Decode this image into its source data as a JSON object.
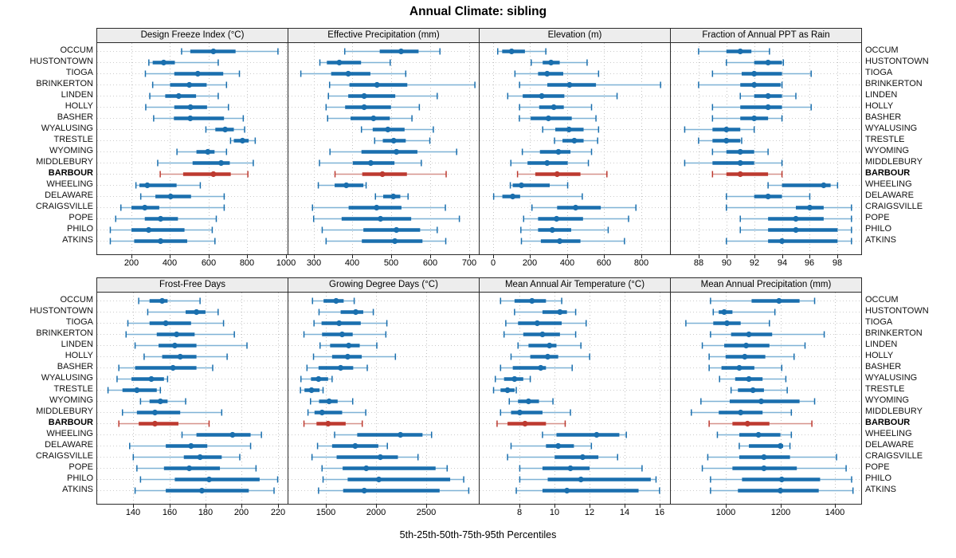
{
  "title": "Annual Climate: sibling",
  "caption": "5th-25th-50th-75th-95th Percentiles",
  "percentile_labels": [
    "5th",
    "25th",
    "50th",
    "75th",
    "95th"
  ],
  "stations": [
    "OCCUM",
    "HUSTONTOWN",
    "TIOGA",
    "BRINKERTON",
    "LINDEN",
    "HOLLY",
    "BASHER",
    "WYALUSING",
    "TRESTLE",
    "WYOMING",
    "MIDDLEBURY",
    "BARBOUR",
    "WHEELING",
    "DELAWARE",
    "CRAIGSVILLE",
    "POPE",
    "PHILO",
    "ATKINS"
  ],
  "highlight_station": "BARBOUR",
  "colors": {
    "blue": "#1a6fae",
    "blue_light": "#7fb2d6",
    "red": "#bd3a30",
    "red_light": "#d6928b",
    "grid": "#c3c3c3",
    "row_guide": "#cccccc",
    "strip_bg": "#ededed",
    "border": "#2a2a2a"
  },
  "chart_data": [
    {
      "type": "dot-whisker",
      "title": "Design Freeze Index (°C)",
      "ticks": [
        200,
        400,
        600,
        800,
        1000
      ],
      "domain": [
        22,
        1010
      ],
      "series": {
        "OCCUM": [
          460,
          505,
          625,
          740,
          960
        ],
        "HUSTONTOWN": [
          290,
          310,
          367,
          425,
          650
        ],
        "TIOGA": [
          272,
          422,
          544,
          676,
          760
        ],
        "BRINKERTON": [
          310,
          400,
          500,
          590,
          693
        ],
        "LINDEN": [
          295,
          375,
          445,
          535,
          650
        ],
        "HOLLY": [
          274,
          422,
          506,
          592,
          703
        ],
        "BASHER": [
          315,
          420,
          505,
          680,
          780
        ],
        "WYALUSING": [
          586,
          635,
          686,
          731,
          787
        ],
        "TRESTLE": [
          714,
          731,
          776,
          808,
          842
        ],
        "WYOMING": [
          436,
          537,
          596,
          631,
          693
        ],
        "MIDDLEBURY": [
          336,
          517,
          665,
          710,
          832
        ],
        "BARBOUR": [
          349,
          468,
          625,
          715,
          804
        ],
        "WHEELING": [
          223,
          241,
          282,
          434,
          557
        ],
        "DELAWARE": [
          248,
          324,
          403,
          509,
          681
        ],
        "CRAIGSVILLE": [
          145,
          200,
          269,
          344,
          681
        ],
        "POPE": [
          118,
          269,
          351,
          441,
          640
        ],
        "PHILO": [
          90,
          200,
          289,
          475,
          619
        ],
        "ATKINS": [
          90,
          214,
          351,
          489,
          633
        ]
      }
    },
    {
      "type": "dot-whisker",
      "title": "Effective Precipitation (mm)",
      "ticks": [
        300,
        400,
        500,
        600,
        700
      ],
      "domain": [
        235,
        725
      ],
      "series": {
        "OCCUM": [
          380,
          470,
          525,
          570,
          625
        ],
        "HUSTONTOWN": [
          316,
          334,
          366,
          422,
          497
        ],
        "TIOGA": [
          267,
          345,
          389,
          446,
          537
        ],
        "BRINKERTON": [
          341,
          392,
          463,
          541,
          715
        ],
        "LINDEN": [
          338,
          389,
          430,
          510,
          618
        ],
        "HOLLY": [
          332,
          381,
          430,
          499,
          572
        ],
        "BASHER": [
          336,
          395,
          454,
          496,
          553
        ],
        "WYALUSING": [
          423,
          452,
          491,
          534,
          608
        ],
        "TRESTLE": [
          457,
          478,
          506,
          537,
          599
        ],
        "WYOMING": [
          342,
          423,
          513,
          567,
          668
        ],
        "MIDDLEBURY": [
          315,
          401,
          447,
          508,
          577
        ],
        "BARBOUR": [
          355,
          425,
          477,
          540,
          641
        ],
        "WHEELING": [
          312,
          354,
          384,
          428,
          435
        ],
        "DELAWARE": [
          459,
          479,
          505,
          523,
          543
        ],
        "CRAIGSVILLE": [
          297,
          390,
          462,
          526,
          639
        ],
        "POPE": [
          300,
          372,
          472,
          551,
          675
        ],
        "PHILO": [
          322,
          428,
          513,
          574,
          618
        ],
        "ATKINS": [
          332,
          424,
          509,
          580,
          640
        ]
      }
    },
    {
      "type": "dot-whisker",
      "title": "Elevation (m)",
      "ticks": [
        0,
        200,
        400,
        600,
        800
      ],
      "domain": [
        -72,
        957
      ],
      "series": {
        "OCCUM": [
          26,
          50,
          101,
          173,
          286
        ],
        "HUSTONTOWN": [
          207,
          269,
          314,
          361,
          509
        ],
        "TIOGA": [
          119,
          244,
          293,
          380,
          571
        ],
        "BRINKERTON": [
          144,
          294,
          414,
          557,
          906
        ],
        "LINDEN": [
          80,
          161,
          264,
          386,
          671
        ],
        "HOLLY": [
          144,
          250,
          329,
          383,
          533
        ],
        "BASHER": [
          143,
          204,
          300,
          426,
          557
        ],
        "WYALUSING": [
          269,
          337,
          411,
          490,
          571
        ],
        "TRESTLE": [
          333,
          376,
          440,
          490,
          566
        ],
        "WYOMING": [
          159,
          254,
          354,
          419,
          533
        ],
        "MIDDLEBURY": [
          97,
          187,
          293,
          404,
          516
        ],
        "BARBOUR": [
          133,
          229,
          347,
          473,
          616
        ],
        "WHEELING": [
          94,
          107,
          154,
          307,
          404
        ],
        "DELAWARE": [
          4,
          51,
          107,
          147,
          483
        ],
        "CRAIGSVILLE": [
          211,
          347,
          447,
          583,
          773
        ],
        "POPE": [
          166,
          244,
          344,
          487,
          733
        ],
        "PHILO": [
          151,
          244,
          321,
          423,
          623
        ],
        "ATKINS": [
          154,
          259,
          361,
          473,
          711
        ]
      }
    },
    {
      "type": "dot-whisker",
      "title": "Fraction of Annual PPT as Rain",
      "ticks": [
        88,
        90,
        92,
        94,
        96,
        98
      ],
      "domain": [
        86,
        99.7
      ],
      "series": {
        "OCCUM": [
          88.0,
          90.0,
          91.0,
          91.8,
          93.1
        ],
        "HUSTONTOWN": [
          90.0,
          92.0,
          93.0,
          94.0,
          94.1
        ],
        "TIOGA": [
          89.0,
          91.1,
          92.0,
          94.0,
          96.1
        ],
        "BRINKERTON": [
          88.0,
          91.0,
          92.0,
          93.9,
          94.0
        ],
        "LINDEN": [
          91.0,
          92.0,
          93.0,
          94.0,
          95.0
        ],
        "HOLLY": [
          89.0,
          91.0,
          93.0,
          94.0,
          96.1
        ],
        "BASHER": [
          89.0,
          91.0,
          92.0,
          93.0,
          94.0
        ],
        "WYALUSING": [
          87.0,
          89.0,
          90.0,
          91.0,
          92.0
        ],
        "TRESTLE": [
          88.0,
          89.0,
          90.0,
          91.0,
          91.1
        ],
        "WYOMING": [
          89.0,
          90.0,
          91.0,
          92.0,
          93.0
        ],
        "MIDDLEBURY": [
          87.0,
          89.0,
          91.0,
          92.0,
          94.0
        ],
        "BARBOUR": [
          89.0,
          90.0,
          91.0,
          93.0,
          94.0
        ],
        "WHEELING": [
          93.0,
          94.0,
          97.0,
          97.5,
          98.0
        ],
        "DELAWARE": [
          90.0,
          92.0,
          93.0,
          94.0,
          96.0
        ],
        "CRAIGSVILLE": [
          90.0,
          95.0,
          96.0,
          97.0,
          99.0
        ],
        "POPE": [
          91.0,
          93.0,
          95.0,
          97.0,
          99.0
        ],
        "PHILO": [
          91.0,
          93.0,
          95.0,
          98.0,
          99.0
        ],
        "ATKINS": [
          90.0,
          93.0,
          94.0,
          98.0,
          99.0
        ]
      }
    },
    {
      "type": "dot-whisker",
      "title": "Frost-Free Days",
      "ticks": [
        140,
        160,
        180,
        200,
        220
      ],
      "domain": [
        120,
        225.5
      ],
      "series": {
        "OCCUM": [
          143,
          149,
          156,
          159,
          177
        ],
        "HUSTONTOWN": [
          148,
          169,
          175,
          180,
          187
        ],
        "TIOGA": [
          137,
          149,
          158,
          172,
          190
        ],
        "BRINKERTON": [
          136,
          153,
          164,
          174,
          196
        ],
        "LINDEN": [
          141,
          154,
          163,
          175,
          203
        ],
        "HOLLY": [
          146,
          156,
          166,
          175,
          192
        ],
        "BASHER": [
          132,
          141,
          162,
          175,
          184
        ],
        "WYALUSING": [
          131,
          139,
          150,
          157,
          159
        ],
        "TRESTLE": [
          126,
          134,
          142,
          153,
          155
        ],
        "WYOMING": [
          144,
          149,
          155,
          159,
          169
        ],
        "MIDDLEBURY": [
          134,
          142,
          152,
          166,
          189
        ],
        "BARBOUR": [
          132,
          143,
          152,
          165,
          182
        ],
        "WHEELING": [
          167,
          175,
          195,
          205,
          211
        ],
        "DELAWARE": [
          138,
          158,
          172,
          181,
          205
        ],
        "CRAIGSVILLE": [
          140,
          168,
          177,
          189,
          199
        ],
        "POPE": [
          142,
          157,
          171,
          188,
          208
        ],
        "PHILO": [
          144,
          163,
          182,
          210,
          220
        ],
        "ATKINS": [
          141,
          158,
          178,
          204,
          218
        ]
      }
    },
    {
      "type": "dot-whisker",
      "title": "Growing Degree Days (°C)",
      "ticks": [
        1500,
        2000,
        2500
      ],
      "domain": [
        1125,
        3020
      ],
      "series": {
        "OCCUM": [
          1365,
          1475,
          1600,
          1675,
          1780
        ],
        "HUSTONTOWN": [
          1430,
          1645,
          1795,
          1870,
          1970
        ],
        "TIOGA": [
          1380,
          1455,
          1630,
          1845,
          2105
        ],
        "BRINKERTON": [
          1280,
          1460,
          1660,
          1765,
          2095
        ],
        "LINDEN": [
          1440,
          1540,
          1725,
          1835,
          2005
        ],
        "HOLLY": [
          1375,
          1560,
          1715,
          1855,
          2190
        ],
        "BASHER": [
          1310,
          1425,
          1645,
          1770,
          1910
        ],
        "WYALUSING": [
          1250,
          1350,
          1425,
          1520,
          1560
        ],
        "TRESTLE": [
          1245,
          1285,
          1355,
          1435,
          1470
        ],
        "WYOMING": [
          1345,
          1430,
          1530,
          1615,
          1765
        ],
        "MIDDLEBURY": [
          1320,
          1385,
          1460,
          1660,
          1895
        ],
        "BARBOUR": [
          1280,
          1405,
          1520,
          1695,
          1860
        ],
        "WHEELING": [
          1585,
          1810,
          2240,
          2460,
          2550
        ],
        "DELAWARE": [
          1415,
          1560,
          1790,
          2020,
          2110
        ],
        "CRAIGSVILLE": [
          1360,
          1605,
          2040,
          2215,
          2415
        ],
        "POPE": [
          1460,
          1665,
          1900,
          2590,
          2705
        ],
        "PHILO": [
          1470,
          1715,
          2025,
          2735,
          2870
        ],
        "ATKINS": [
          1425,
          1670,
          1880,
          2630,
          2920
        ]
      }
    },
    {
      "type": "dot-whisker",
      "title": "Mean Annual Air Temperature (°C)",
      "ticks": [
        8,
        10,
        12,
        14,
        16
      ],
      "domain": [
        5.7,
        16.6
      ],
      "series": {
        "OCCUM": [
          6.9,
          7.7,
          8.7,
          9.5,
          10.4
        ],
        "HUSTONTOWN": [
          7.7,
          9.3,
          10.3,
          10.7,
          11.2
        ],
        "TIOGA": [
          7.2,
          7.9,
          9.0,
          10.4,
          11.8
        ],
        "BRINKERTON": [
          7.1,
          8.2,
          9.3,
          10.3,
          11.2
        ],
        "LINDEN": [
          7.9,
          8.5,
          9.7,
          10.1,
          11.5
        ],
        "HOLLY": [
          7.5,
          8.6,
          9.6,
          10.2,
          12.0
        ],
        "BASHER": [
          6.9,
          7.6,
          9.2,
          9.5,
          11.0
        ],
        "WYALUSING": [
          6.6,
          7.1,
          7.7,
          8.2,
          8.6
        ],
        "TRESTLE": [
          6.5,
          6.9,
          7.3,
          7.7,
          7.8
        ],
        "WYOMING": [
          7.4,
          7.9,
          8.5,
          9.1,
          9.9
        ],
        "MIDDLEBURY": [
          6.9,
          7.5,
          8.0,
          9.3,
          10.9
        ],
        "BARBOUR": [
          6.7,
          7.3,
          8.3,
          9.5,
          10.6
        ],
        "WHEELING": [
          9.3,
          10.1,
          12.4,
          13.7,
          14.1
        ],
        "DELAWARE": [
          7.5,
          9.5,
          10.2,
          11.1,
          12.1
        ],
        "CRAIGSVILLE": [
          7.3,
          10.0,
          11.6,
          12.5,
          13.6
        ],
        "POPE": [
          8.0,
          9.3,
          10.9,
          12.0,
          15.0
        ],
        "PHILO": [
          8.0,
          9.6,
          11.5,
          15.5,
          15.8
        ],
        "ATKINS": [
          7.8,
          9.3,
          10.7,
          14.8,
          16.0
        ]
      }
    },
    {
      "type": "dot-whisker",
      "title": "Mean Annual Precipitation (mm)",
      "ticks": [
        1000,
        1200,
        1400
      ],
      "domain": [
        800,
        1495
      ],
      "series": {
        "OCCUM": [
          945,
          1095,
          1195,
          1270,
          1325
        ],
        "HUSTONTOWN": [
          955,
          975,
          995,
          1025,
          1180
        ],
        "TIOGA": [
          855,
          955,
          1005,
          1055,
          1160
        ],
        "BRINKERTON": [
          945,
          1020,
          1085,
          1170,
          1360
        ],
        "LINDEN": [
          915,
          995,
          1075,
          1160,
          1290
        ],
        "HOLLY": [
          940,
          1000,
          1070,
          1145,
          1250
        ],
        "BASHER": [
          940,
          985,
          1050,
          1105,
          1205
        ],
        "WYALUSING": [
          978,
          1035,
          1085,
          1135,
          1220
        ],
        "TRESTLE": [
          1020,
          1045,
          1100,
          1140,
          1225
        ],
        "WYOMING": [
          910,
          1015,
          1130,
          1270,
          1325
        ],
        "MIDDLEBURY": [
          875,
          975,
          1055,
          1135,
          1240
        ],
        "BARBOUR": [
          940,
          1025,
          1080,
          1160,
          1315
        ],
        "WHEELING": [
          970,
          1050,
          1120,
          1200,
          1240
        ],
        "DELAWARE": [
          1050,
          1085,
          1200,
          1210,
          1235
        ],
        "CRAIGSVILLE": [
          935,
          1050,
          1140,
          1235,
          1405
        ],
        "POPE": [
          915,
          1025,
          1140,
          1260,
          1440
        ],
        "PHILO": [
          945,
          1060,
          1205,
          1345,
          1460
        ],
        "ATKINS": [
          945,
          1045,
          1200,
          1340,
          1465
        ]
      }
    }
  ]
}
